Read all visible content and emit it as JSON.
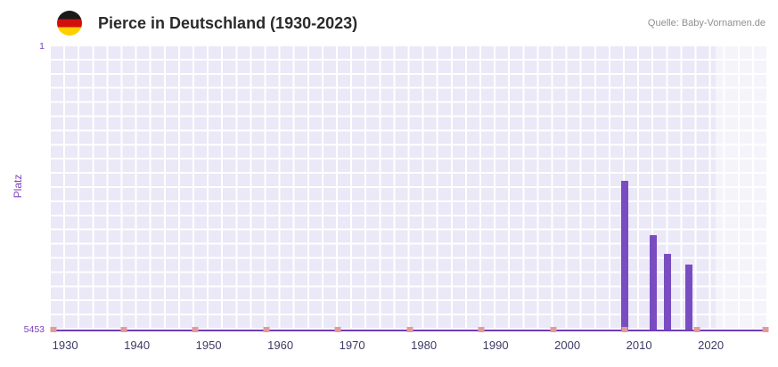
{
  "header": {
    "title": "Pierce in Deutschland (1930-2023)",
    "source": "Quelle: Baby-Vornamen.de",
    "flag_icon": "germany-flag",
    "flag_colors": [
      "#1a1a1a",
      "#d20f0f",
      "#ffcf00"
    ]
  },
  "chart_data": {
    "type": "bar",
    "title": "Pierce in Deutschland (1930-2023)",
    "xlabel": "",
    "ylabel": "Platz",
    "y_axis": {
      "min": 1,
      "max": 5453,
      "inverted": true,
      "top_tick_label": "1",
      "bottom_tick_label": "5453"
    },
    "x_axis": {
      "min": 1928,
      "max": 2028,
      "tick_years": [
        1930,
        1940,
        1950,
        1960,
        1970,
        1980,
        1990,
        2000,
        2010,
        2020
      ]
    },
    "bars": [
      {
        "year": 2008,
        "rank": 2590
      },
      {
        "year": 2012,
        "rank": 3640
      },
      {
        "year": 2014,
        "rank": 4000
      },
      {
        "year": 2017,
        "rank": 4200
      }
    ],
    "axis_marks_years": [
      1928.4,
      1938.2,
      1948.1,
      1958,
      1968,
      1978,
      1988,
      1998,
      2008,
      2018,
      2027.6
    ],
    "highlight_band": {
      "start_year": 2020.7,
      "end_year": 2028
    },
    "grid": true,
    "legend_position": "none",
    "colors": {
      "bar": "#7a4cc2",
      "axis_line": "#6f3db6",
      "axis_mark": "#e59a9a",
      "plot_background": "#ebe8f7",
      "grid_line": "#ffffff",
      "highlight_band": "rgba(255,255,255,0.5)",
      "x_tick_label": "#3d3b64",
      "y_tick_label": "#7e42bb",
      "title": "#2b2b2b",
      "source": "#8f8f8f"
    }
  }
}
